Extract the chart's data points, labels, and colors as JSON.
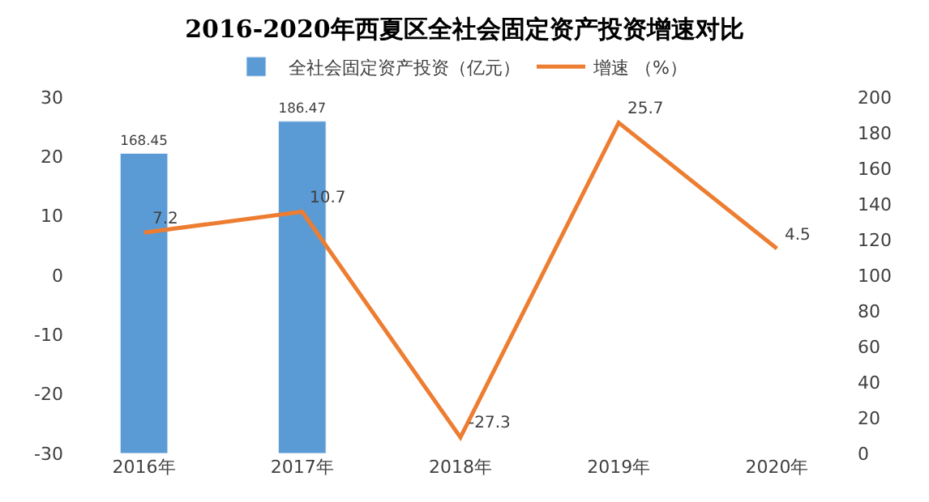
{
  "chart_data": {
    "type": "bar",
    "title": "2016-2020年西夏区全社会固定资产投资增速对比",
    "categories": [
      "2016年",
      "2017年",
      "2018年",
      "2019年",
      "2020年"
    ],
    "series": [
      {
        "name": "全社会固定资产投资（亿元）",
        "axis": "y2",
        "color": "#5b9bd5",
        "values": [
          168.45,
          186.47,
          null,
          null,
          null
        ]
      },
      {
        "name": "增速 （%）",
        "type": "line",
        "color": "#ed7d31",
        "values": [
          7.2,
          10.7,
          -27.3,
          25.7,
          4.5
        ]
      }
    ],
    "ylim": [
      -30,
      30
    ],
    "yticks": [
      -30,
      -20,
      -10,
      0,
      10,
      20,
      30
    ],
    "y2lim": [
      0,
      200
    ],
    "y2ticks": [
      0,
      20,
      40,
      60,
      80,
      100,
      120,
      140,
      160,
      180,
      200
    ],
    "data_labels": true,
    "legend": "top",
    "marker": "none",
    "line_style": "solid"
  }
}
